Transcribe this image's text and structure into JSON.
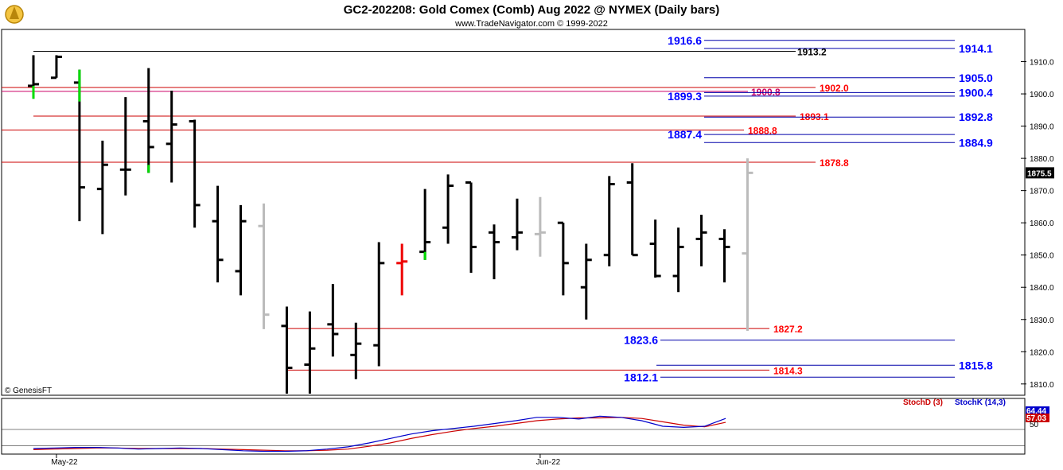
{
  "header": {
    "title": "GC2-202208:  Gold Comex (Comb) Aug 2022 @ NYMEX  (Daily bars)",
    "subtitle": "www.TradeNavigator.com © 1999-2022"
  },
  "watermark": "© GenesisFT",
  "colors": {
    "up": "#000000",
    "highlight_green": "#00dd00",
    "highlight_red": "#ee0000",
    "gray": "#bbbbbb",
    "blue_line": "#0000aa",
    "red_line": "#cc0000",
    "stoch_d": "#cc0000",
    "stoch_k": "#0000cc"
  },
  "chart_data": {
    "type": "ohlc",
    "y_axis_ticks": [
      "1910.0",
      "1900.0",
      "1890.0",
      "1880.0",
      "1870.0",
      "1860.0",
      "1850.0",
      "1840.0",
      "1830.0",
      "1820.0",
      "1810.0"
    ],
    "ylim": [
      1806.5,
      1920
    ],
    "x_labels": [
      {
        "label": "May-22",
        "bar": 1
      },
      {
        "label": "Jun-22",
        "bar": 22
      }
    ],
    "last_price": "1875.5",
    "bars": [
      {
        "o": 1902.5,
        "h": 1912.0,
        "l": 1898.5,
        "c": 1903.0,
        "color": "black",
        "tail": "green"
      },
      {
        "o": 1905.0,
        "h": 1912.0,
        "l": 1905.0,
        "c": 1911.5,
        "color": "black"
      },
      {
        "o": 1903.5,
        "h": 1907.5,
        "l": 1860.5,
        "c": 1871.0,
        "color": "black",
        "headgreen": true
      },
      {
        "o": 1870.5,
        "h": 1885.5,
        "l": 1856.5,
        "c": 1878.0,
        "color": "black"
      },
      {
        "o": 1876.5,
        "h": 1899.0,
        "l": 1868.5,
        "c": 1876.5,
        "color": "black"
      },
      {
        "o": 1891.5,
        "h": 1908.0,
        "l": 1875.5,
        "c": 1883.5,
        "color": "black",
        "tailgreen": true
      },
      {
        "o": 1884.5,
        "h": 1901.0,
        "l": 1872.5,
        "c": 1890.5,
        "color": "black"
      },
      {
        "o": 1891.5,
        "h": 1892.0,
        "l": 1858.5,
        "c": 1865.5,
        "color": "black"
      },
      {
        "o": 1860.5,
        "h": 1871.5,
        "l": 1841.5,
        "c": 1848.5,
        "color": "black"
      },
      {
        "o": 1845.0,
        "h": 1865.5,
        "l": 1837.5,
        "c": 1860.5,
        "color": "black"
      },
      {
        "o": 1859.0,
        "h": 1866.0,
        "l": 1827.0,
        "c": 1831.5,
        "color": "gray"
      },
      {
        "o": 1828.0,
        "h": 1834.0,
        "l": 1807.0,
        "c": 1815.0,
        "color": "black"
      },
      {
        "o": 1816.0,
        "h": 1832.5,
        "l": 1807.0,
        "c": 1821.0,
        "color": "black"
      },
      {
        "o": 1828.5,
        "h": 1841.0,
        "l": 1818.5,
        "c": 1825.5,
        "color": "black"
      },
      {
        "o": 1819.0,
        "h": 1829.0,
        "l": 1811.5,
        "c": 1822.5,
        "color": "black"
      },
      {
        "o": 1822.0,
        "h": 1854.0,
        "l": 1815.5,
        "c": 1847.5,
        "color": "black"
      },
      {
        "o": 1847.5,
        "h": 1853.5,
        "l": 1837.5,
        "c": 1848.0,
        "color": "red"
      },
      {
        "o": 1851.0,
        "h": 1870.5,
        "l": 1848.5,
        "c": 1854.0,
        "color": "black",
        "tailgreen": true
      },
      {
        "o": 1858.5,
        "h": 1875.0,
        "l": 1853.5,
        "c": 1871.5,
        "color": "black"
      },
      {
        "o": 1872.5,
        "h": 1872.5,
        "l": 1844.5,
        "c": 1852.5,
        "color": "black"
      },
      {
        "o": 1857.0,
        "h": 1859.5,
        "l": 1842.5,
        "c": 1854.0,
        "color": "black"
      },
      {
        "o": 1855.5,
        "h": 1867.5,
        "l": 1851.5,
        "c": 1857.0,
        "color": "black"
      },
      {
        "o": 1856.5,
        "h": 1868.0,
        "l": 1849.5,
        "c": 1857.0,
        "color": "gray"
      },
      {
        "o": 1860.0,
        "h": 1860.0,
        "l": 1837.5,
        "c": 1847.5,
        "color": "black"
      },
      {
        "o": 1840.0,
        "h": 1853.5,
        "l": 1830.0,
        "c": 1848.5,
        "color": "black"
      },
      {
        "o": 1850.0,
        "h": 1874.5,
        "l": 1846.5,
        "c": 1872.0,
        "color": "black"
      },
      {
        "o": 1872.5,
        "h": 1878.5,
        "l": 1850.0,
        "c": 1850.0,
        "color": "black"
      },
      {
        "o": 1853.5,
        "h": 1861.0,
        "l": 1843.0,
        "c": 1843.5,
        "color": "black"
      },
      {
        "o": 1843.5,
        "h": 1858.5,
        "l": 1838.5,
        "c": 1852.5,
        "color": "black"
      },
      {
        "o": 1855.0,
        "h": 1862.5,
        "l": 1846.5,
        "c": 1857.0,
        "color": "black"
      },
      {
        "o": 1855.0,
        "h": 1858.0,
        "l": 1841.5,
        "c": 1852.5,
        "color": "black"
      },
      {
        "o": 1850.5,
        "h": 1880.0,
        "l": 1826.5,
        "c": 1875.5,
        "color": "gray"
      }
    ],
    "levels": [
      {
        "price": 1916.6,
        "label": "1916.6",
        "color": "blue",
        "label_side": "left"
      },
      {
        "price": 1914.1,
        "label": "1914.1",
        "color": "blue",
        "label_side": "right"
      },
      {
        "price": 1913.2,
        "label": "1913.2",
        "color": "black",
        "label_side": "mid"
      },
      {
        "price": 1905.0,
        "label": "1905.0",
        "color": "blue",
        "label_side": "right"
      },
      {
        "price": 1902.0,
        "label": "1902.0",
        "color": "red",
        "label_side": "midred"
      },
      {
        "price": 1900.8,
        "label": "1900.8",
        "color": "purple",
        "label_side": "mid"
      },
      {
        "price": 1900.4,
        "label": "1900.4",
        "color": "blue",
        "label_side": "right"
      },
      {
        "price": 1899.3,
        "label": "1899.3",
        "color": "blue",
        "label_side": "left"
      },
      {
        "price": 1893.1,
        "label": "1893.1",
        "color": "red",
        "label_side": "midred"
      },
      {
        "price": 1892.8,
        "label": "1892.8",
        "color": "blue",
        "label_side": "right"
      },
      {
        "price": 1888.8,
        "label": "1888.8",
        "color": "red",
        "label_side": "midred"
      },
      {
        "price": 1887.4,
        "label": "1887.4",
        "color": "blue",
        "label_side": "left"
      },
      {
        "price": 1884.9,
        "label": "1884.9",
        "color": "blue",
        "label_side": "right"
      },
      {
        "price": 1878.8,
        "label": "1878.8",
        "color": "red",
        "label_side": "midred"
      },
      {
        "price": 1827.2,
        "label": "1827.2",
        "color": "red",
        "label_side": "midred"
      },
      {
        "price": 1823.6,
        "label": "1823.6",
        "color": "blue",
        "label_side": "left"
      },
      {
        "price": 1815.8,
        "label": "1815.8",
        "color": "blue",
        "label_side": "right"
      },
      {
        "price": 1814.3,
        "label": "1814.3",
        "color": "red",
        "label_side": "midred"
      },
      {
        "price": 1812.1,
        "label": "1812.1",
        "color": "blue",
        "label_side": "left"
      }
    ],
    "stochastic": {
      "legend": [
        {
          "name": "StochD (3)",
          "color": "#cc0000"
        },
        {
          "name": "StochK (14,3)",
          "color": "#0000cc"
        }
      ],
      "k_last": "64.44",
      "d_last": "57.03",
      "tick_label": "50",
      "k": [
        10,
        11,
        12,
        12,
        11,
        9,
        10,
        11,
        10,
        8,
        6,
        5,
        5,
        6,
        9,
        13,
        20,
        28,
        36,
        42,
        46,
        50,
        55,
        60,
        66,
        66,
        63,
        68,
        66,
        60,
        50,
        48,
        50,
        64
      ],
      "d": [
        8,
        9,
        10,
        11,
        11,
        10,
        10,
        10,
        10,
        9,
        8,
        7,
        6,
        6,
        7,
        9,
        14,
        20,
        28,
        35,
        41,
        46,
        50,
        55,
        60,
        63,
        65,
        65,
        66,
        64,
        58,
        52,
        49,
        57
      ]
    }
  }
}
